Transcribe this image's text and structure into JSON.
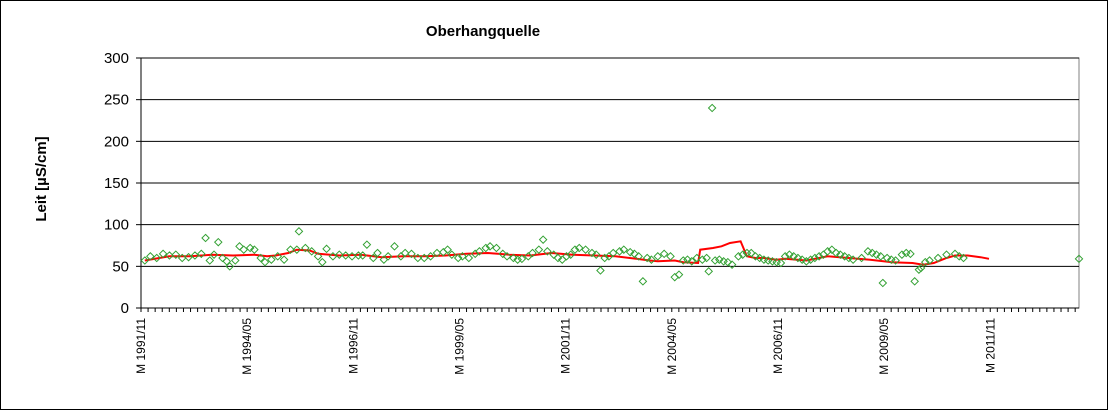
{
  "chart_data": {
    "type": "line",
    "title": "Oberhangquelle",
    "xlabel": "",
    "ylabel": "Leit [µS/cm]",
    "ylim": [
      0,
      300
    ],
    "yticks": [
      "0",
      "50",
      "100",
      "150",
      "200",
      "250",
      "300"
    ],
    "xlim": [
      1991.83,
      2013.92
    ],
    "xticks": [
      {
        "label": "M 1991/11",
        "x": 1991.83
      },
      {
        "label": "M 1994/05",
        "x": 1994.33
      },
      {
        "label": "M 1996/11",
        "x": 1996.83
      },
      {
        "label": "M 1999/05",
        "x": 1999.33
      },
      {
        "label": "M 2001/11",
        "x": 2001.83
      },
      {
        "label": "M 2004/05",
        "x": 2004.33
      },
      {
        "label": "M 2006/11",
        "x": 2006.83
      },
      {
        "label": "M 2009/05",
        "x": 2009.33
      },
      {
        "label": "M 2011/11",
        "x": 2011.83
      }
    ],
    "grid": true,
    "legend": "none",
    "colors": {
      "line": "#ff0000",
      "markers": "#33a133",
      "gridline": "#000000",
      "plot_border": "#808080"
    },
    "series": [
      {
        "type": "scatter",
        "marker": "diamond",
        "points": [
          [
            1991.92,
            57
          ],
          [
            1992.05,
            62
          ],
          [
            1992.2,
            60
          ],
          [
            1992.35,
            65
          ],
          [
            1992.5,
            63
          ],
          [
            1992.65,
            64
          ],
          [
            1992.8,
            60
          ],
          [
            1992.95,
            61
          ],
          [
            1993.1,
            63
          ],
          [
            1993.25,
            65
          ],
          [
            1993.35,
            84
          ],
          [
            1993.45,
            57
          ],
          [
            1993.55,
            64
          ],
          [
            1993.65,
            79
          ],
          [
            1993.75,
            60
          ],
          [
            1993.85,
            56
          ],
          [
            1993.92,
            50
          ],
          [
            1994.05,
            57
          ],
          [
            1994.15,
            74
          ],
          [
            1994.25,
            70
          ],
          [
            1994.4,
            72
          ],
          [
            1994.5,
            70
          ],
          [
            1994.65,
            60
          ],
          [
            1994.75,
            55
          ],
          [
            1994.9,
            58
          ],
          [
            1995.05,
            62
          ],
          [
            1995.2,
            58
          ],
          [
            1995.35,
            70
          ],
          [
            1995.5,
            70
          ],
          [
            1995.55,
            92
          ],
          [
            1995.7,
            72
          ],
          [
            1995.85,
            68
          ],
          [
            1996.0,
            62
          ],
          [
            1996.1,
            55
          ],
          [
            1996.2,
            71
          ],
          [
            1996.35,
            62
          ],
          [
            1996.5,
            64
          ],
          [
            1996.65,
            63
          ],
          [
            1996.8,
            62
          ],
          [
            1996.95,
            63
          ],
          [
            1997.05,
            63
          ],
          [
            1997.15,
            76
          ],
          [
            1997.3,
            60
          ],
          [
            1997.4,
            66
          ],
          [
            1997.55,
            58
          ],
          [
            1997.65,
            62
          ],
          [
            1997.8,
            74
          ],
          [
            1997.95,
            62
          ],
          [
            1998.05,
            66
          ],
          [
            1998.2,
            65
          ],
          [
            1998.35,
            60
          ],
          [
            1998.5,
            60
          ],
          [
            1998.65,
            62
          ],
          [
            1998.8,
            66
          ],
          [
            1998.95,
            67
          ],
          [
            1999.05,
            70
          ],
          [
            1999.15,
            64
          ],
          [
            1999.3,
            60
          ],
          [
            1999.4,
            62
          ],
          [
            1999.55,
            60
          ],
          [
            1999.7,
            65
          ],
          [
            1999.8,
            68
          ],
          [
            1999.95,
            72
          ],
          [
            2000.05,
            74
          ],
          [
            2000.2,
            72
          ],
          [
            2000.35,
            65
          ],
          [
            2000.45,
            62
          ],
          [
            2000.6,
            60
          ],
          [
            2000.7,
            58
          ],
          [
            2000.8,
            59
          ],
          [
            2000.95,
            62
          ],
          [
            2001.05,
            66
          ],
          [
            2001.2,
            70
          ],
          [
            2001.3,
            82
          ],
          [
            2001.4,
            68
          ],
          [
            2001.55,
            64
          ],
          [
            2001.65,
            60
          ],
          [
            2001.75,
            58
          ],
          [
            2001.85,
            62
          ],
          [
            2001.95,
            64
          ],
          [
            2002.05,
            70
          ],
          [
            2002.15,
            72
          ],
          [
            2002.3,
            70
          ],
          [
            2002.45,
            66
          ],
          [
            2002.55,
            64
          ],
          [
            2002.65,
            45
          ],
          [
            2002.75,
            60
          ],
          [
            2002.85,
            62
          ],
          [
            2002.95,
            66
          ],
          [
            2003.1,
            68
          ],
          [
            2003.2,
            70
          ],
          [
            2003.35,
            67
          ],
          [
            2003.45,
            65
          ],
          [
            2003.55,
            62
          ],
          [
            2003.65,
            32
          ],
          [
            2003.75,
            60
          ],
          [
            2003.85,
            58
          ],
          [
            2004.0,
            62
          ],
          [
            2004.15,
            65
          ],
          [
            2004.3,
            62
          ],
          [
            2004.4,
            37
          ],
          [
            2004.5,
            40
          ],
          [
            2004.6,
            57
          ],
          [
            2004.7,
            58
          ],
          [
            2004.8,
            56
          ],
          [
            2004.92,
            60
          ],
          [
            2005.05,
            58
          ],
          [
            2005.15,
            60
          ],
          [
            2005.2,
            44
          ],
          [
            2005.28,
            240
          ],
          [
            2005.35,
            57
          ],
          [
            2005.45,
            58
          ],
          [
            2005.55,
            56
          ],
          [
            2005.65,
            55
          ],
          [
            2005.75,
            52
          ],
          [
            2005.9,
            62
          ],
          [
            2006.0,
            64
          ],
          [
            2006.1,
            66
          ],
          [
            2006.2,
            66
          ],
          [
            2006.3,
            62
          ],
          [
            2006.4,
            60
          ],
          [
            2006.5,
            58
          ],
          [
            2006.6,
            57
          ],
          [
            2006.7,
            56
          ],
          [
            2006.8,
            55
          ],
          [
            2006.9,
            54
          ],
          [
            2007.0,
            62
          ],
          [
            2007.1,
            64
          ],
          [
            2007.2,
            62
          ],
          [
            2007.3,
            60
          ],
          [
            2007.4,
            58
          ],
          [
            2007.5,
            56
          ],
          [
            2007.6,
            58
          ],
          [
            2007.7,
            60
          ],
          [
            2007.8,
            62
          ],
          [
            2007.9,
            64
          ],
          [
            2008.0,
            68
          ],
          [
            2008.1,
            70
          ],
          [
            2008.2,
            66
          ],
          [
            2008.3,
            64
          ],
          [
            2008.4,
            62
          ],
          [
            2008.5,
            60
          ],
          [
            2008.6,
            58
          ],
          [
            2008.8,
            60
          ],
          [
            2008.95,
            68
          ],
          [
            2009.05,
            66
          ],
          [
            2009.15,
            64
          ],
          [
            2009.25,
            62
          ],
          [
            2009.3,
            30
          ],
          [
            2009.4,
            60
          ],
          [
            2009.5,
            58
          ],
          [
            2009.6,
            57
          ],
          [
            2009.75,
            64
          ],
          [
            2009.85,
            66
          ],
          [
            2009.95,
            65
          ],
          [
            2010.05,
            32
          ],
          [
            2010.15,
            46
          ],
          [
            2010.2,
            48
          ],
          [
            2010.3,
            55
          ],
          [
            2010.4,
            57
          ],
          [
            2010.6,
            60
          ],
          [
            2010.8,
            64
          ],
          [
            2011.0,
            65
          ],
          [
            2011.1,
            62
          ],
          [
            2011.2,
            60
          ],
          [
            2013.92,
            59
          ]
        ]
      },
      {
        "type": "line",
        "points": [
          [
            1991.92,
            57
          ],
          [
            1992.5,
            62
          ],
          [
            1993.0,
            62
          ],
          [
            1993.5,
            64
          ],
          [
            1994.0,
            63
          ],
          [
            1994.5,
            64
          ],
          [
            1994.8,
            62
          ],
          [
            1995.0,
            63
          ],
          [
            1995.3,
            66
          ],
          [
            1995.5,
            70
          ],
          [
            1995.8,
            69
          ],
          [
            1996.0,
            65
          ],
          [
            1996.5,
            63
          ],
          [
            1997.0,
            64
          ],
          [
            1997.5,
            61
          ],
          [
            1998.0,
            62
          ],
          [
            1998.5,
            62
          ],
          [
            1999.0,
            63
          ],
          [
            1999.5,
            65
          ],
          [
            2000.0,
            66
          ],
          [
            2000.5,
            64
          ],
          [
            2001.0,
            63
          ],
          [
            2001.5,
            66
          ],
          [
            2002.0,
            64
          ],
          [
            2002.5,
            63
          ],
          [
            2003.0,
            62
          ],
          [
            2003.5,
            59
          ],
          [
            2003.8,
            57
          ],
          [
            2004.0,
            56
          ],
          [
            2004.4,
            57
          ],
          [
            2004.6,
            55
          ],
          [
            2004.95,
            54
          ],
          [
            2005.0,
            70
          ],
          [
            2005.3,
            72
          ],
          [
            2005.5,
            74
          ],
          [
            2005.7,
            78
          ],
          [
            2005.95,
            80
          ],
          [
            2006.1,
            62
          ],
          [
            2006.3,
            60
          ],
          [
            2006.5,
            60
          ],
          [
            2006.8,
            58
          ],
          [
            2007.0,
            59
          ],
          [
            2007.5,
            57
          ],
          [
            2008.0,
            62
          ],
          [
            2008.5,
            60
          ],
          [
            2009.0,
            58
          ],
          [
            2009.5,
            55
          ],
          [
            2010.0,
            54
          ],
          [
            2010.25,
            52
          ],
          [
            2010.5,
            54
          ],
          [
            2010.8,
            60
          ],
          [
            2011.0,
            63
          ],
          [
            2011.3,
            63
          ],
          [
            2011.6,
            61
          ],
          [
            2011.8,
            59
          ]
        ]
      }
    ]
  }
}
